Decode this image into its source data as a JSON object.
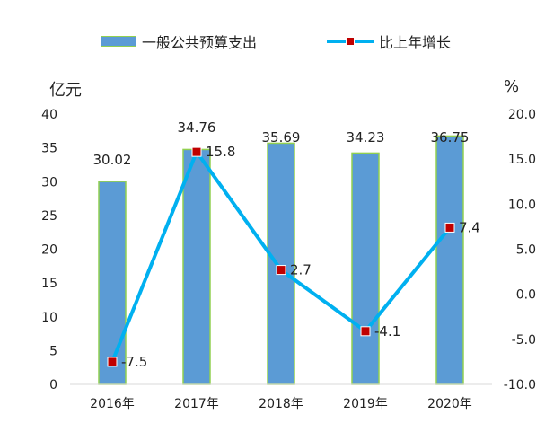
{
  "legend": {
    "bar_label": "一般公共预算支出",
    "line_label": "比上年增长"
  },
  "axes": {
    "left_unit": "亿元",
    "right_unit": "%",
    "left_ticks": [
      "0",
      "5",
      "10",
      "15",
      "20",
      "25",
      "30",
      "35",
      "40"
    ],
    "right_ticks": [
      "-10.0",
      "-5.0",
      "0.0",
      "5.0",
      "10.0",
      "15.0",
      "20.0"
    ]
  },
  "colors": {
    "bar_fill": "#5b9bd5",
    "bar_border": "#92d050",
    "line": "#00b0f0",
    "marker": "#c00000"
  },
  "chart_data": {
    "type": "bar",
    "categories": [
      "2016年",
      "2017年",
      "2018年",
      "2019年",
      "2020年"
    ],
    "series": [
      {
        "name": "一般公共预算支出",
        "type": "bar",
        "axis": "left",
        "values": [
          30.02,
          34.76,
          35.69,
          34.23,
          36.75
        ],
        "labels": [
          "30.02",
          "34.76",
          "35.69",
          "34.23",
          "36.75"
        ]
      },
      {
        "name": "比上年增长",
        "type": "line",
        "axis": "right",
        "values": [
          -7.5,
          15.8,
          2.7,
          -4.1,
          7.4
        ],
        "labels": [
          "-7.5",
          "15.8",
          "2.7",
          "-4.1",
          "7.4"
        ]
      }
    ],
    "ylabel": "亿元",
    "y2label": "%",
    "ylim": [
      0,
      40
    ],
    "y2lim": [
      -10,
      20
    ],
    "grid": false,
    "legend_position": "top"
  }
}
